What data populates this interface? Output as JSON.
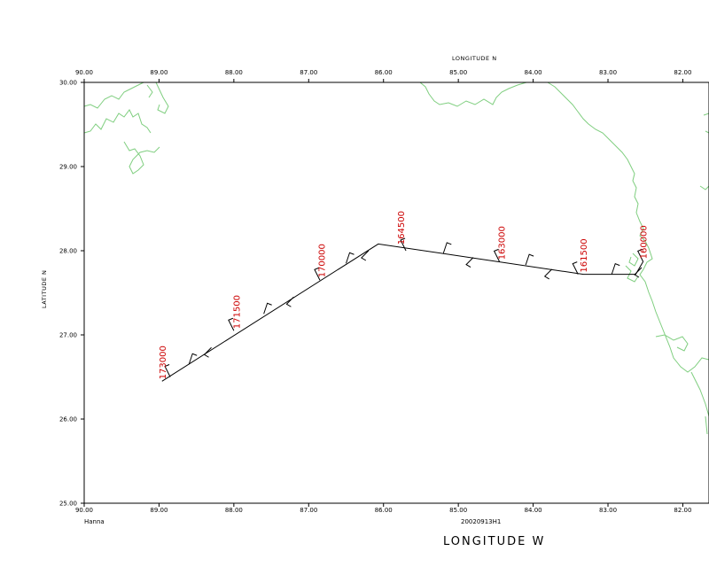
{
  "map": {
    "top_axis_title": "LONGITUDE  N",
    "left_axis_title": "LATITUDE  N",
    "bottom_axis_title": "LONGITUDE  W",
    "storm_name": "Hanna",
    "flight_id": "20020913H1",
    "lon_ticks": [
      "90.00",
      "89.00",
      "88.00",
      "87.00",
      "86.00",
      "85.00",
      "84.00",
      "83.00",
      "82.00"
    ],
    "lat_ticks": [
      "30.00",
      "29.00",
      "28.00",
      "27.00",
      "26.00",
      "25.00"
    ],
    "colors": {
      "coastline": "#7fce7f",
      "track": "#000000",
      "time_labels": "#cc0000"
    }
  },
  "chart_data": {
    "type": "scatter",
    "x_axis": "Longitude W",
    "y_axis": "Latitude N",
    "xlim": [
      90.0,
      81.65
    ],
    "ylim": [
      25.0,
      30.0
    ],
    "track": [
      {
        "lon": 88.96,
        "lat": 26.45
      },
      {
        "lon": 86.07,
        "lat": 28.08
      },
      {
        "lon": 83.33,
        "lat": 27.72
      },
      {
        "lon": 82.63,
        "lat": 27.72
      },
      {
        "lon": 82.53,
        "lat": 27.87
      }
    ],
    "time_labels": [
      {
        "text": "160000",
        "lon": 82.53,
        "lat": 27.88
      },
      {
        "text": "161500",
        "lon": 83.33,
        "lat": 27.72
      },
      {
        "text": "163000",
        "lon": 84.43,
        "lat": 27.87
      },
      {
        "text": "164500",
        "lon": 85.77,
        "lat": 28.05
      },
      {
        "text": "170000",
        "lon": 86.83,
        "lat": 27.66
      },
      {
        "text": "171500",
        "lon": 87.97,
        "lat": 27.05
      },
      {
        "text": "173000",
        "lon": 88.96,
        "lat": 26.45
      }
    ],
    "wind_barbs": [
      {
        "lon": 88.85,
        "lat": 26.5
      },
      {
        "lon": 88.6,
        "lat": 26.65
      },
      {
        "lon": 88.3,
        "lat": 26.85
      },
      {
        "lon": 88.0,
        "lat": 27.05
      },
      {
        "lon": 87.6,
        "lat": 27.25
      },
      {
        "lon": 87.2,
        "lat": 27.45
      },
      {
        "lon": 86.85,
        "lat": 27.65
      },
      {
        "lon": 86.5,
        "lat": 27.85
      },
      {
        "lon": 86.2,
        "lat": 28.0
      },
      {
        "lon": 85.7,
        "lat": 28.0
      },
      {
        "lon": 85.2,
        "lat": 27.97
      },
      {
        "lon": 84.8,
        "lat": 27.92
      },
      {
        "lon": 84.45,
        "lat": 27.87
      },
      {
        "lon": 84.1,
        "lat": 27.83
      },
      {
        "lon": 83.75,
        "lat": 27.78
      },
      {
        "lon": 83.4,
        "lat": 27.72
      },
      {
        "lon": 82.95,
        "lat": 27.72
      },
      {
        "lon": 82.55,
        "lat": 27.8
      },
      {
        "lon": 82.53,
        "lat": 27.87
      }
    ]
  }
}
